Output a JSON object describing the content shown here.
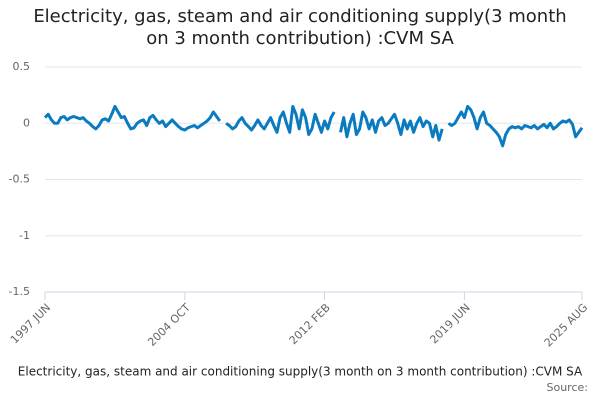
{
  "chart_data": {
    "type": "line",
    "title": "Electricity, gas, steam and air conditioning supply(3 month on 3 month contribution) :CVM SA",
    "x_label": "Electricity, gas, steam and air conditioning supply(3 month on 3 month contribution) :CVM SA",
    "source": "Source:",
    "ylim": [
      -1.5,
      0.5
    ],
    "yticks": [
      0.5,
      0,
      -0.5,
      -1,
      -1.5
    ],
    "grid": true,
    "categories": [
      "1997 JUN",
      null,
      null,
      null,
      null,
      null,
      null,
      null,
      null,
      null,
      null,
      null,
      null,
      null,
      null,
      null,
      null,
      null,
      null,
      null,
      null,
      null,
      null,
      null,
      null,
      null,
      null,
      null,
      null,
      null,
      null,
      null,
      null,
      null,
      null,
      null,
      null,
      null,
      null,
      null,
      null,
      null,
      null,
      null,
      "2004 OCT",
      null,
      null,
      null,
      null,
      null,
      null,
      null,
      null,
      null,
      null,
      null,
      null,
      null,
      null,
      null,
      null,
      null,
      null,
      null,
      null,
      null,
      null,
      null,
      null,
      null,
      null,
      null,
      null,
      null,
      null,
      null,
      null,
      null,
      null,
      null,
      null,
      null,
      null,
      null,
      null,
      null,
      null,
      null,
      "2012 FEB",
      null,
      null,
      null,
      null,
      null,
      null,
      null,
      null,
      null,
      null,
      null,
      null,
      null,
      null,
      null,
      null,
      null,
      null,
      null,
      null,
      null,
      null,
      null,
      null,
      null,
      null,
      null,
      null,
      null,
      null,
      null,
      null,
      null,
      null,
      null,
      null,
      null,
      null,
      null,
      null,
      null,
      null,
      null,
      "2019 JUN",
      null,
      null,
      null,
      null,
      null,
      null,
      null,
      null,
      null,
      null,
      null,
      null,
      null,
      null,
      null,
      null,
      null,
      null,
      null,
      null,
      null,
      null,
      null,
      null,
      null,
      null,
      null,
      null,
      null,
      null,
      null,
      null,
      null,
      null,
      null,
      null,
      "2025 AUG"
    ],
    "series": [
      {
        "name": "Electricity, gas, steam and air conditioning supply(3 month on 3 month contribution) :CVM SA",
        "color": "#0b7bc1",
        "values": [
          0.05,
          0.08,
          0.03,
          0.0,
          0.0,
          0.05,
          0.06,
          0.03,
          0.05,
          0.06,
          0.05,
          0.04,
          0.05,
          0.02,
          0.0,
          -0.03,
          -0.05,
          -0.02,
          0.03,
          0.04,
          0.02,
          0.08,
          0.15,
          0.1,
          0.05,
          0.06,
          0.0,
          -0.05,
          -0.04,
          0.0,
          0.02,
          0.03,
          -0.02,
          0.05,
          0.07,
          0.03,
          0.0,
          0.02,
          -0.03,
          0.0,
          0.03,
          0.0,
          -0.03,
          -0.05,
          -0.06,
          -0.04,
          -0.03,
          -0.02,
          -0.04,
          -0.02,
          0.0,
          0.02,
          0.05,
          0.1,
          0.06,
          0.02,
          null,
          0.0,
          -0.02,
          -0.05,
          -0.03,
          0.02,
          0.05,
          0.0,
          -0.03,
          -0.06,
          -0.02,
          0.03,
          -0.02,
          -0.05,
          0.0,
          0.05,
          -0.02,
          -0.08,
          0.05,
          0.1,
          0.0,
          -0.08,
          0.15,
          0.08,
          -0.05,
          0.12,
          0.05,
          -0.1,
          -0.05,
          0.08,
          0.0,
          -0.08,
          0.02,
          -0.05,
          0.05,
          0.1,
          null,
          -0.08,
          0.05,
          -0.12,
          0.0,
          0.08,
          -0.1,
          -0.05,
          0.1,
          0.05,
          -0.05,
          0.03,
          -0.08,
          0.02,
          0.05,
          -0.02,
          0.0,
          0.04,
          0.08,
          0.0,
          -0.1,
          0.03,
          -0.05,
          0.02,
          -0.08,
          0.0,
          0.05,
          -0.03,
          0.02,
          0.0,
          -0.12,
          -0.02,
          -0.15,
          -0.05,
          null,
          0.0,
          -0.02,
          0.0,
          0.05,
          0.1,
          0.05,
          0.15,
          0.12,
          0.05,
          -0.05,
          0.05,
          0.1,
          0.0,
          -0.02,
          -0.05,
          -0.08,
          -0.12,
          -0.2,
          -0.1,
          -0.05,
          -0.03,
          -0.04,
          -0.03,
          -0.05,
          -0.02,
          -0.03,
          -0.04,
          -0.02,
          -0.05,
          -0.03,
          -0.01,
          -0.04,
          0.0,
          -0.05,
          -0.03,
          0.0,
          0.02,
          0.01,
          0.03,
          -0.01,
          -0.12,
          -0.08,
          -0.04
        ]
      }
    ]
  }
}
